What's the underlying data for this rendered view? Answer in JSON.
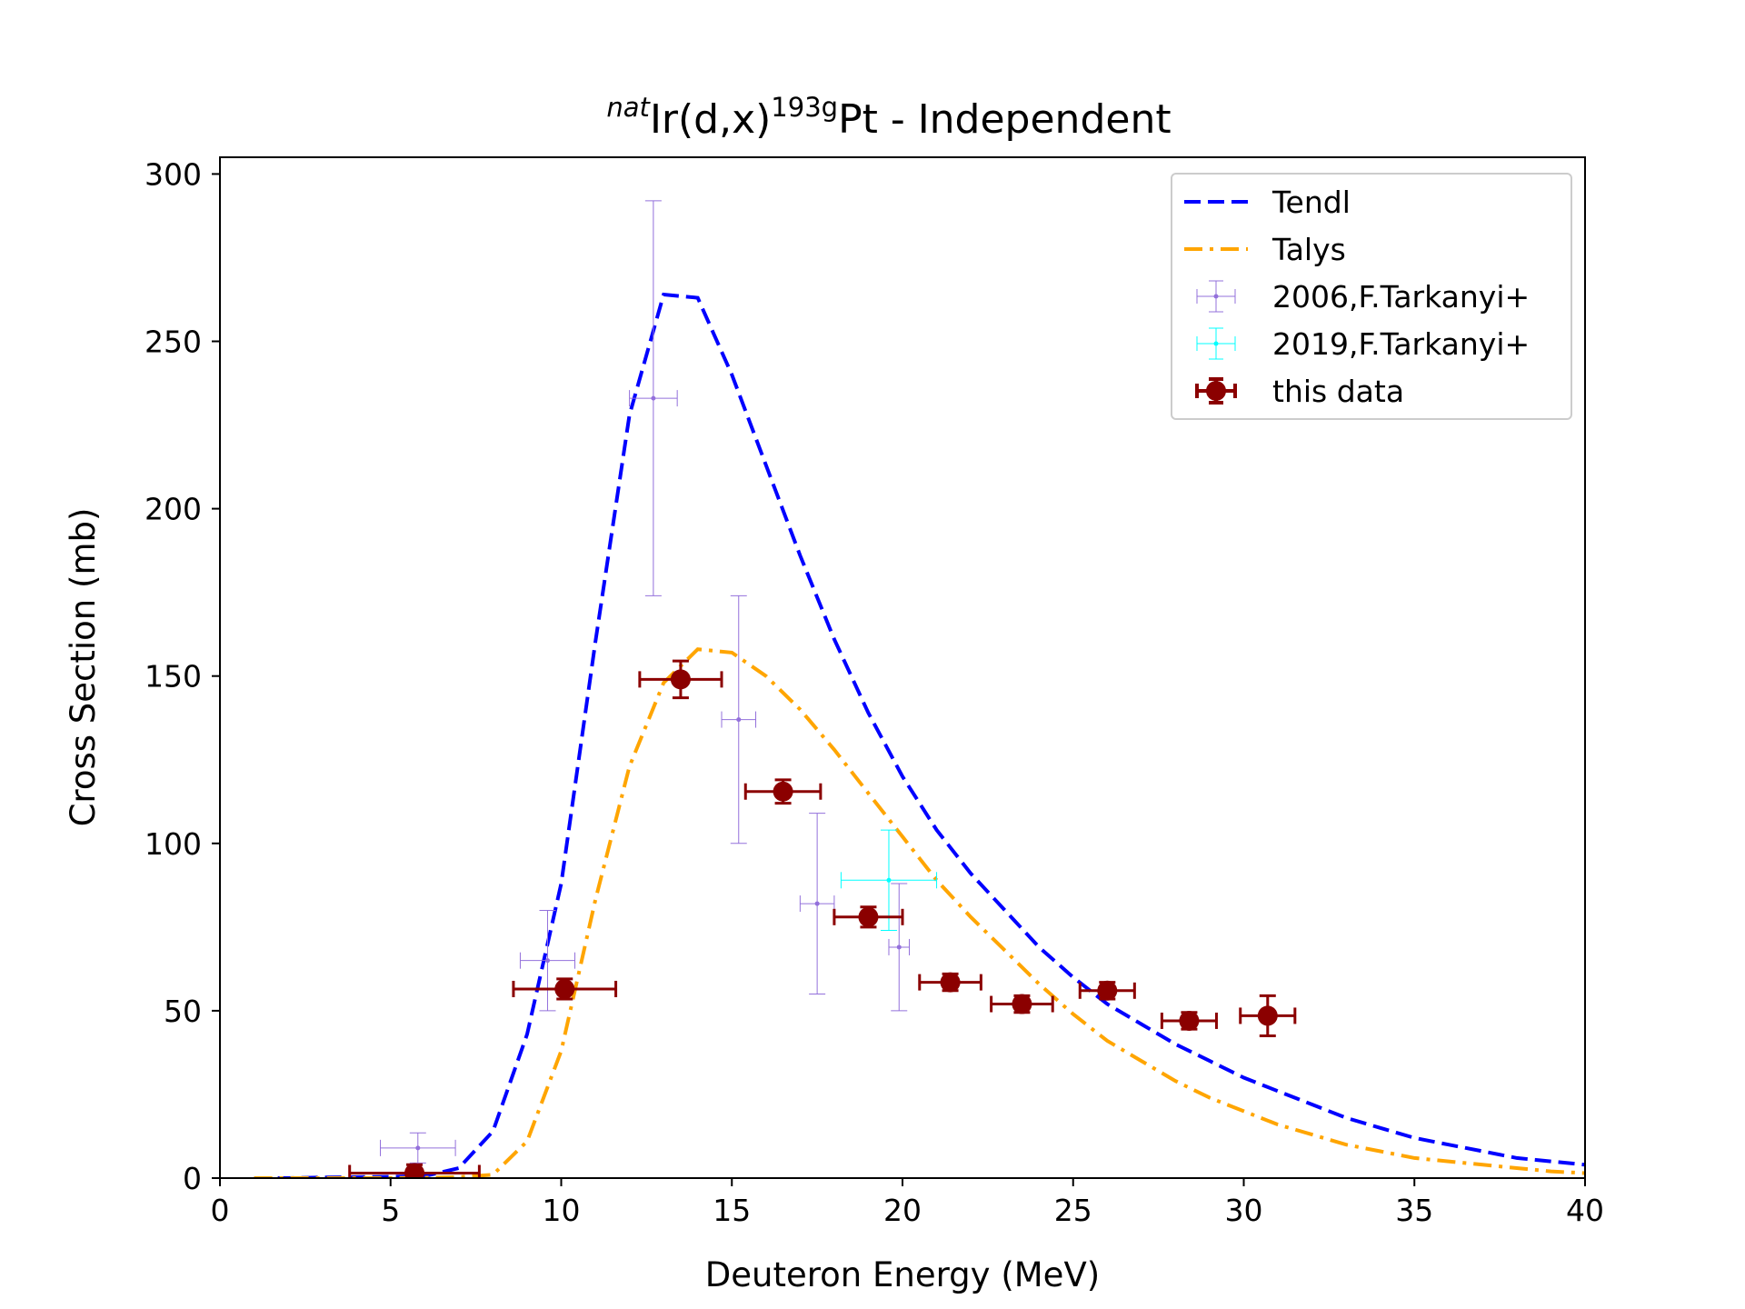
{
  "chart_data": {
    "type": "scatter",
    "title": {
      "pre_sup": "nat",
      "part1": "Ir(d,x)",
      "mid_sup": "193g",
      "part2": "Pt - Independent"
    },
    "xlabel": "Deuteron Energy (MeV)",
    "ylabel": "Cross Section (mb)",
    "xlim": [
      0,
      40
    ],
    "ylim": [
      0,
      305
    ],
    "xticks": [
      0,
      5,
      10,
      15,
      20,
      25,
      30,
      35,
      40
    ],
    "yticks": [
      0,
      50,
      100,
      150,
      200,
      250,
      300
    ],
    "grid": false,
    "legend_position": "upper right",
    "curves": [
      {
        "name": "Tendl",
        "color": "#0000ff",
        "style": "dashed",
        "x": [
          1,
          2,
          3,
          4,
          5,
          6,
          7,
          8,
          9,
          10,
          11,
          12,
          13,
          14,
          15,
          16,
          17,
          18,
          19,
          20,
          21,
          22,
          23,
          24,
          25,
          26,
          27,
          28,
          29,
          30,
          31,
          32,
          33,
          34,
          35,
          36,
          37,
          38,
          39,
          40
        ],
        "y": [
          0,
          0,
          0.2,
          0.3,
          0.4,
          0.6,
          3,
          14,
          43,
          88,
          160,
          228,
          264,
          263,
          240,
          213,
          186,
          161,
          139,
          120,
          104,
          91,
          80,
          69,
          60,
          52,
          46,
          40,
          35,
          30,
          26,
          22,
          18,
          15,
          12,
          10,
          8,
          6,
          5,
          4
        ]
      },
      {
        "name": "Talys",
        "color": "#ffa500",
        "style": "dashdot",
        "x": [
          1,
          2,
          3,
          4,
          5,
          6,
          7,
          8,
          9,
          10,
          11,
          12,
          13,
          14,
          15,
          16,
          17,
          18,
          19,
          20,
          21,
          22,
          23,
          24,
          25,
          26,
          27,
          28,
          29,
          30,
          31,
          32,
          33,
          34,
          35,
          36,
          37,
          38,
          39,
          40
        ],
        "y": [
          0,
          0,
          0,
          0,
          0,
          0.1,
          0.3,
          1,
          11,
          38,
          83,
          123,
          148,
          158,
          157,
          150,
          140,
          128,
          115,
          102,
          89,
          78,
          68,
          58,
          49,
          41,
          35,
          29,
          24,
          20,
          16,
          13,
          10,
          8,
          6,
          5,
          4,
          3,
          2,
          1.5
        ]
      }
    ],
    "series": [
      {
        "name": "2006,F.Tarkanyi+",
        "color": "#9370db",
        "points": [
          {
            "x": 5.8,
            "y": 9,
            "xerr": 1.1,
            "yerr": 4.5
          },
          {
            "x": 9.6,
            "y": 65,
            "xerr": 0.8,
            "yerr": 15
          },
          {
            "x": 12.7,
            "y": 233,
            "xerr": 0.7,
            "yerr": 59
          },
          {
            "x": 15.2,
            "y": 137,
            "xerr": 0.5,
            "yerr": 37
          },
          {
            "x": 17.5,
            "y": 82,
            "xerr": 0.5,
            "yerr": 27
          },
          {
            "x": 19.9,
            "y": 69,
            "xerr": 0.3,
            "yerr": 19
          }
        ]
      },
      {
        "name": "2019,F.Tarkanyi+",
        "color": "#00ffff",
        "points": [
          {
            "x": 19.6,
            "y": 89,
            "xerr": 1.4,
            "yerr": 15
          }
        ]
      },
      {
        "name": "this data",
        "color": "#8b0000",
        "points": [
          {
            "x": 5.7,
            "y": 1.5,
            "xerr": 1.9,
            "yerr": 2.5
          },
          {
            "x": 10.1,
            "y": 56.5,
            "xerr": 1.5,
            "yerr": 3
          },
          {
            "x": 13.5,
            "y": 149,
            "xerr": 1.2,
            "yerr": 5.5
          },
          {
            "x": 16.5,
            "y": 115.5,
            "xerr": 1.1,
            "yerr": 3.5
          },
          {
            "x": 19.0,
            "y": 78,
            "xerr": 1.0,
            "yerr": 3
          },
          {
            "x": 21.4,
            "y": 58.5,
            "xerr": 0.9,
            "yerr": 2.5
          },
          {
            "x": 23.5,
            "y": 52,
            "xerr": 0.9,
            "yerr": 2.5
          },
          {
            "x": 26.0,
            "y": 56,
            "xerr": 0.8,
            "yerr": 2.5
          },
          {
            "x": 28.4,
            "y": 47,
            "xerr": 0.8,
            "yerr": 2.5
          },
          {
            "x": 30.7,
            "y": 48.5,
            "xerr": 0.8,
            "yerr": 6
          }
        ]
      }
    ]
  }
}
